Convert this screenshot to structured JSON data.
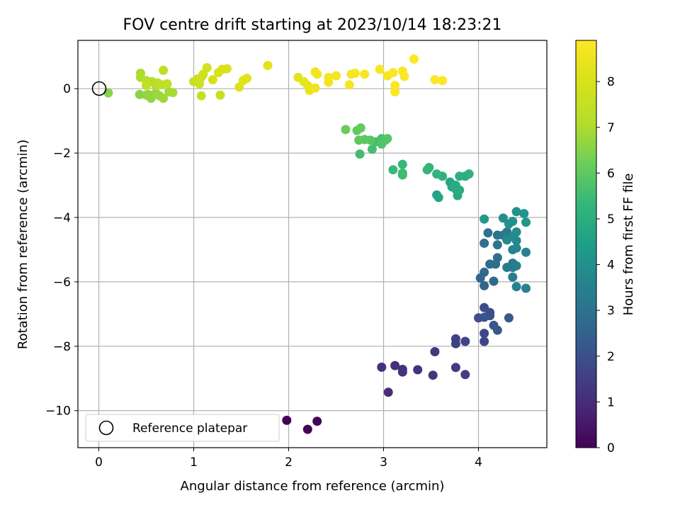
{
  "chart_data": {
    "type": "scatter",
    "title": "FOV centre drift starting at 2023/10/14 18:23:21",
    "xlabel": "Angular distance from reference (arcmin)",
    "ylabel": "Rotation from reference (arcmin)",
    "xlim": [
      -0.22,
      4.72
    ],
    "ylim": [
      -11.15,
      1.5
    ],
    "xticks": [
      0,
      1,
      2,
      3,
      4
    ],
    "yticks": [
      0,
      -2,
      -4,
      -6,
      -8,
      -10
    ],
    "xtick_labels": [
      "0",
      "1",
      "2",
      "3",
      "4"
    ],
    "ytick_labels": [
      "0",
      "−2",
      "−4",
      "−6",
      "−8",
      "−10"
    ],
    "grid": true,
    "colormap": "viridis",
    "colorbar": {
      "label": "Hours from first FF file",
      "range": [
        0,
        8.9
      ],
      "ticks": [
        0,
        1,
        2,
        3,
        4,
        5,
        6,
        7,
        8
      ],
      "tick_labels": [
        "0",
        "1",
        "2",
        "3",
        "4",
        "5",
        "6",
        "7",
        "8"
      ]
    },
    "legend": {
      "position": "bottom-left",
      "entries": [
        "Reference platepar"
      ]
    },
    "reference": {
      "x": 0,
      "y": 0
    },
    "points": [
      [
        1.98,
        -10.3,
        0.05
      ],
      [
        2.2,
        -10.58,
        0.08
      ],
      [
        2.3,
        -10.33,
        0.1
      ],
      [
        3.05,
        -9.43,
        1.0
      ],
      [
        2.98,
        -8.65,
        1.05
      ],
      [
        3.12,
        -8.6,
        1.1
      ],
      [
        3.2,
        -8.72,
        1.12
      ],
      [
        3.2,
        -8.8,
        1.15
      ],
      [
        3.36,
        -8.73,
        1.2
      ],
      [
        3.52,
        -8.9,
        1.25
      ],
      [
        3.54,
        -8.17,
        1.35
      ],
      [
        3.76,
        -8.66,
        1.4
      ],
      [
        3.86,
        -8.88,
        1.45
      ],
      [
        3.76,
        -7.77,
        1.55
      ],
      [
        3.76,
        -7.92,
        1.6
      ],
      [
        3.86,
        -7.85,
        1.65
      ],
      [
        4.06,
        -7.85,
        1.7
      ],
      [
        4.06,
        -7.6,
        1.75
      ],
      [
        4.06,
        -6.8,
        1.9
      ],
      [
        4.0,
        -7.12,
        1.95
      ],
      [
        4.12,
        -7.05,
        2.0
      ],
      [
        4.12,
        -6.95,
        2.05
      ],
      [
        4.06,
        -7.1,
        2.1
      ],
      [
        4.16,
        -7.35,
        2.15
      ],
      [
        4.2,
        -7.5,
        2.2
      ],
      [
        4.32,
        -7.12,
        2.3
      ],
      [
        4.02,
        -5.88,
        2.6
      ],
      [
        4.06,
        -6.12,
        2.65
      ],
      [
        4.06,
        -5.7,
        2.7
      ],
      [
        4.16,
        -5.98,
        2.75
      ],
      [
        4.12,
        -5.45,
        2.8
      ],
      [
        4.18,
        -5.45,
        2.85
      ],
      [
        4.2,
        -5.25,
        2.9
      ],
      [
        4.06,
        -4.8,
        2.95
      ],
      [
        4.1,
        -4.48,
        3.0
      ],
      [
        4.2,
        -4.55,
        3.05
      ],
      [
        4.2,
        -4.85,
        3.1
      ],
      [
        4.26,
        -4.55,
        3.15
      ],
      [
        4.3,
        -4.45,
        3.2
      ],
      [
        4.3,
        -5.55,
        3.25
      ],
      [
        4.36,
        -5.42,
        3.3
      ],
      [
        4.36,
        -5.55,
        3.35
      ],
      [
        4.36,
        -5.85,
        3.4
      ],
      [
        4.4,
        -5.5,
        3.45
      ],
      [
        4.4,
        -6.15,
        3.5
      ],
      [
        4.5,
        -6.2,
        3.55
      ],
      [
        4.5,
        -5.08,
        3.6
      ],
      [
        4.36,
        -5.0,
        3.65
      ],
      [
        4.4,
        -4.95,
        3.7
      ],
      [
        4.4,
        -4.72,
        3.75
      ],
      [
        4.36,
        -4.6,
        3.8
      ],
      [
        4.3,
        -4.7,
        3.85
      ],
      [
        4.4,
        -4.45,
        3.9
      ],
      [
        4.26,
        -4.02,
        3.95
      ],
      [
        4.32,
        -4.2,
        4.0
      ],
      [
        4.36,
        -4.12,
        4.05
      ],
      [
        4.4,
        -3.82,
        4.1
      ],
      [
        4.48,
        -3.88,
        4.15
      ],
      [
        4.5,
        -4.15,
        4.2
      ],
      [
        4.06,
        -4.05,
        4.25
      ],
      [
        3.56,
        -3.3,
        4.6
      ],
      [
        3.58,
        -3.38,
        4.65
      ],
      [
        3.72,
        -3.05,
        4.7
      ],
      [
        3.7,
        -2.9,
        4.75
      ],
      [
        3.76,
        -3.12,
        4.8
      ],
      [
        3.78,
        -3.32,
        4.85
      ],
      [
        3.8,
        -3.15,
        4.9
      ],
      [
        3.76,
        -3.0,
        4.95
      ],
      [
        3.86,
        -2.72,
        5.0
      ],
      [
        3.8,
        -2.72,
        5.05
      ],
      [
        3.9,
        -2.65,
        5.1
      ],
      [
        3.62,
        -2.72,
        5.15
      ],
      [
        3.56,
        -2.65,
        5.2
      ],
      [
        3.48,
        -2.45,
        5.25
      ],
      [
        3.46,
        -2.52,
        5.3
      ],
      [
        3.2,
        -2.35,
        5.35
      ],
      [
        3.1,
        -2.52,
        5.4
      ],
      [
        3.2,
        -2.62,
        5.45
      ],
      [
        3.2,
        -2.68,
        5.5
      ],
      [
        2.75,
        -2.03,
        5.55
      ],
      [
        2.88,
        -1.88,
        5.6
      ],
      [
        2.92,
        -1.65,
        5.65
      ],
      [
        2.98,
        -1.55,
        5.7
      ],
      [
        2.98,
        -1.72,
        5.75
      ],
      [
        3.02,
        -1.6,
        5.8
      ],
      [
        3.04,
        -1.55,
        5.85
      ],
      [
        2.86,
        -1.6,
        5.9
      ],
      [
        2.8,
        -1.58,
        5.95
      ],
      [
        2.74,
        -1.6,
        6.0
      ],
      [
        2.72,
        -1.3,
        6.05
      ],
      [
        2.76,
        -1.22,
        6.1
      ],
      [
        2.6,
        -1.27,
        6.15
      ],
      [
        0.1,
        -0.13,
        6.5
      ],
      [
        0.43,
        -0.18,
        6.55
      ],
      [
        0.5,
        -0.2,
        6.6
      ],
      [
        0.55,
        -0.3,
        6.65
      ],
      [
        0.52,
        -0.18,
        6.7
      ],
      [
        0.6,
        -0.13,
        6.75
      ],
      [
        0.64,
        -0.22,
        6.8
      ],
      [
        0.68,
        -0.3,
        6.85
      ],
      [
        0.74,
        -0.1,
        6.9
      ],
      [
        0.78,
        -0.12,
        6.95
      ],
      [
        0.44,
        0.48,
        7.0
      ],
      [
        0.44,
        0.35,
        7.05
      ],
      [
        0.5,
        0.25,
        7.1
      ],
      [
        0.56,
        0.22,
        7.15
      ],
      [
        0.6,
        0.1,
        7.2
      ],
      [
        0.62,
        0.18,
        7.25
      ],
      [
        0.66,
        0.12,
        7.3
      ],
      [
        0.68,
        0.57,
        7.35
      ],
      [
        0.72,
        0.15,
        7.4
      ],
      [
        0.5,
        0.1,
        7.45
      ],
      [
        1.08,
        -0.22,
        7.5
      ],
      [
        1.28,
        -0.2,
        7.55
      ],
      [
        1.0,
        0.22,
        7.6
      ],
      [
        1.04,
        0.3,
        7.65
      ],
      [
        1.06,
        0.15,
        7.7
      ],
      [
        1.08,
        0.35,
        7.75
      ],
      [
        1.1,
        0.45,
        7.8
      ],
      [
        1.14,
        0.65,
        7.85
      ],
      [
        1.2,
        0.28,
        7.9
      ],
      [
        1.26,
        0.5,
        7.95
      ],
      [
        1.3,
        0.6,
        8.0
      ],
      [
        1.35,
        0.62,
        8.05
      ],
      [
        1.48,
        0.05,
        8.1
      ],
      [
        1.52,
        0.25,
        8.15
      ],
      [
        1.56,
        0.32,
        8.2
      ],
      [
        1.78,
        0.72,
        8.25
      ],
      [
        2.1,
        0.35,
        8.3
      ],
      [
        2.16,
        0.22,
        8.35
      ],
      [
        2.2,
        0.1,
        8.4
      ],
      [
        2.22,
        -0.05,
        8.45
      ],
      [
        2.28,
        0.02,
        8.5
      ],
      [
        2.28,
        0.52,
        8.55
      ],
      [
        2.3,
        0.45,
        8.6
      ],
      [
        2.42,
        0.2,
        8.62
      ],
      [
        2.42,
        0.35,
        8.64
      ],
      [
        2.5,
        0.4,
        8.66
      ],
      [
        2.64,
        0.12,
        8.68
      ],
      [
        2.66,
        0.45,
        8.7
      ],
      [
        2.7,
        0.48,
        8.72
      ],
      [
        2.8,
        0.45,
        8.74
      ],
      [
        2.96,
        0.6,
        8.76
      ],
      [
        3.04,
        0.4,
        8.78
      ],
      [
        3.1,
        0.5,
        8.8
      ],
      [
        3.12,
        -0.1,
        8.82
      ],
      [
        3.12,
        0.1,
        8.84
      ],
      [
        3.2,
        0.55,
        8.86
      ],
      [
        3.22,
        0.38,
        8.88
      ],
      [
        3.32,
        0.92,
        8.9
      ],
      [
        3.54,
        0.28,
        8.92
      ],
      [
        3.62,
        0.25,
        8.94
      ]
    ]
  }
}
